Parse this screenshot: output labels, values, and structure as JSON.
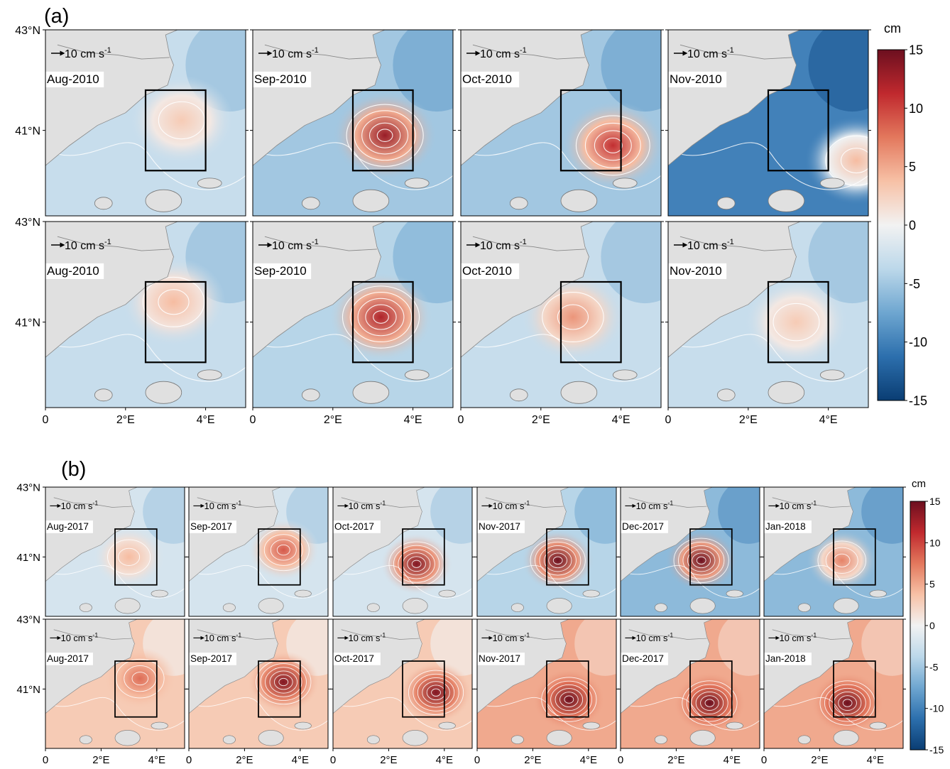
{
  "figure": {
    "panel_a_label": "(a)",
    "panel_b_label": "(b)",
    "colorbar_unit": "cm",
    "colorbar_ticks": [
      "15",
      "10",
      "5",
      "0",
      "-5",
      "-10",
      "-15"
    ],
    "lat_labels": [
      "43°N",
      "41°N"
    ],
    "lon_labels": [
      "0",
      "2°E",
      "4°E"
    ],
    "vector_label": "10 cm s",
    "vector_exp": "-1"
  },
  "chart_data": [
    {
      "type": "heatmap",
      "panel": "(a)",
      "unit": "cm",
      "colorbar_range": [
        -15,
        15
      ],
      "colormap": [
        "#0a3d73",
        "#2c6fad",
        "#6ea6d0",
        "#bcd8ea",
        "#f2f2f2",
        "#f7c1a6",
        "#e3785d",
        "#c0292e",
        "#6c0f1f"
      ],
      "land_color": "#e0e0e0",
      "axis_range": {
        "lon": [
          0,
          5
        ],
        "lat": [
          39.3,
          43
        ]
      },
      "box": {
        "lon": [
          2.5,
          4.0
        ],
        "lat": [
          40.2,
          41.8
        ]
      },
      "rows": [
        {
          "panels": [
            {
              "label": "Aug-2010",
              "eddy": {
                "lon": 3.4,
                "lat": 41.2,
                "peak_cm": 3
              },
              "background_cm": -3
            },
            {
              "label": "Sep-2010",
              "eddy": {
                "lon": 3.3,
                "lat": 40.9,
                "peak_cm": 13
              },
              "background_cm": -5
            },
            {
              "label": "Oct-2010",
              "eddy": {
                "lon": 3.8,
                "lat": 40.7,
                "peak_cm": 11
              },
              "background_cm": -5
            },
            {
              "label": "Nov-2010",
              "eddy": {
                "lon": 4.7,
                "lat": 40.4,
                "peak_cm": 4
              },
              "background_cm": -10
            }
          ]
        },
        {
          "panels": [
            {
              "label": "Aug-2010",
              "eddy": {
                "lon": 3.2,
                "lat": 41.4,
                "peak_cm": 4
              },
              "background_cm": -3
            },
            {
              "label": "Sep-2010",
              "eddy": {
                "lon": 3.2,
                "lat": 41.1,
                "peak_cm": 12
              },
              "background_cm": -4
            },
            {
              "label": "Oct-2010",
              "eddy": {
                "lon": 2.8,
                "lat": 41.1,
                "peak_cm": 6
              },
              "background_cm": -3
            },
            {
              "label": "Nov-2010",
              "eddy": {
                "lon": 3.2,
                "lat": 41.0,
                "peak_cm": 3
              },
              "background_cm": -3
            }
          ]
        }
      ]
    },
    {
      "type": "heatmap",
      "panel": "(b)",
      "unit": "cm",
      "colorbar_range": [
        -15,
        15
      ],
      "axis_range": {
        "lon": [
          0,
          5
        ],
        "lat": [
          39.3,
          43
        ]
      },
      "box": {
        "lon": [
          2.5,
          4.0
        ],
        "lat": [
          40.2,
          41.8
        ]
      },
      "rows": [
        {
          "panels": [
            {
              "label": "Aug-2017",
              "eddy": {
                "lon": 3.0,
                "lat": 41.0,
                "peak_cm": 4
              },
              "background_cm": -2
            },
            {
              "label": "Sep-2017",
              "eddy": {
                "lon": 3.4,
                "lat": 41.2,
                "peak_cm": 9
              },
              "background_cm": -2
            },
            {
              "label": "Oct-2017",
              "eddy": {
                "lon": 3.0,
                "lat": 40.8,
                "peak_cm": 14
              },
              "background_cm": -2
            },
            {
              "label": "Nov-2017",
              "eddy": {
                "lon": 2.9,
                "lat": 40.9,
                "peak_cm": 15
              },
              "background_cm": -4
            },
            {
              "label": "Dec-2017",
              "eddy": {
                "lon": 2.9,
                "lat": 40.9,
                "peak_cm": 15
              },
              "background_cm": -6
            },
            {
              "label": "Jan-2018",
              "eddy": {
                "lon": 2.8,
                "lat": 40.9,
                "peak_cm": 7
              },
              "background_cm": -6
            }
          ]
        },
        {
          "panels": [
            {
              "label": "Aug-2017",
              "eddy": {
                "lon": 3.4,
                "lat": 41.3,
                "peak_cm": 8
              },
              "background_cm": 3
            },
            {
              "label": "Sep-2017",
              "eddy": {
                "lon": 3.4,
                "lat": 41.2,
                "peak_cm": 14
              },
              "background_cm": 3
            },
            {
              "label": "Oct-2017",
              "eddy": {
                "lon": 3.7,
                "lat": 40.9,
                "peak_cm": 14
              },
              "background_cm": 3
            },
            {
              "label": "Nov-2017",
              "eddy": {
                "lon": 3.3,
                "lat": 40.7,
                "peak_cm": 15
              },
              "background_cm": 5
            },
            {
              "label": "Dec-2017",
              "eddy": {
                "lon": 3.2,
                "lat": 40.6,
                "peak_cm": 15
              },
              "background_cm": 5
            },
            {
              "label": "Jan-2018",
              "eddy": {
                "lon": 3.0,
                "lat": 40.6,
                "peak_cm": 15
              },
              "background_cm": 5
            }
          ]
        }
      ]
    }
  ]
}
